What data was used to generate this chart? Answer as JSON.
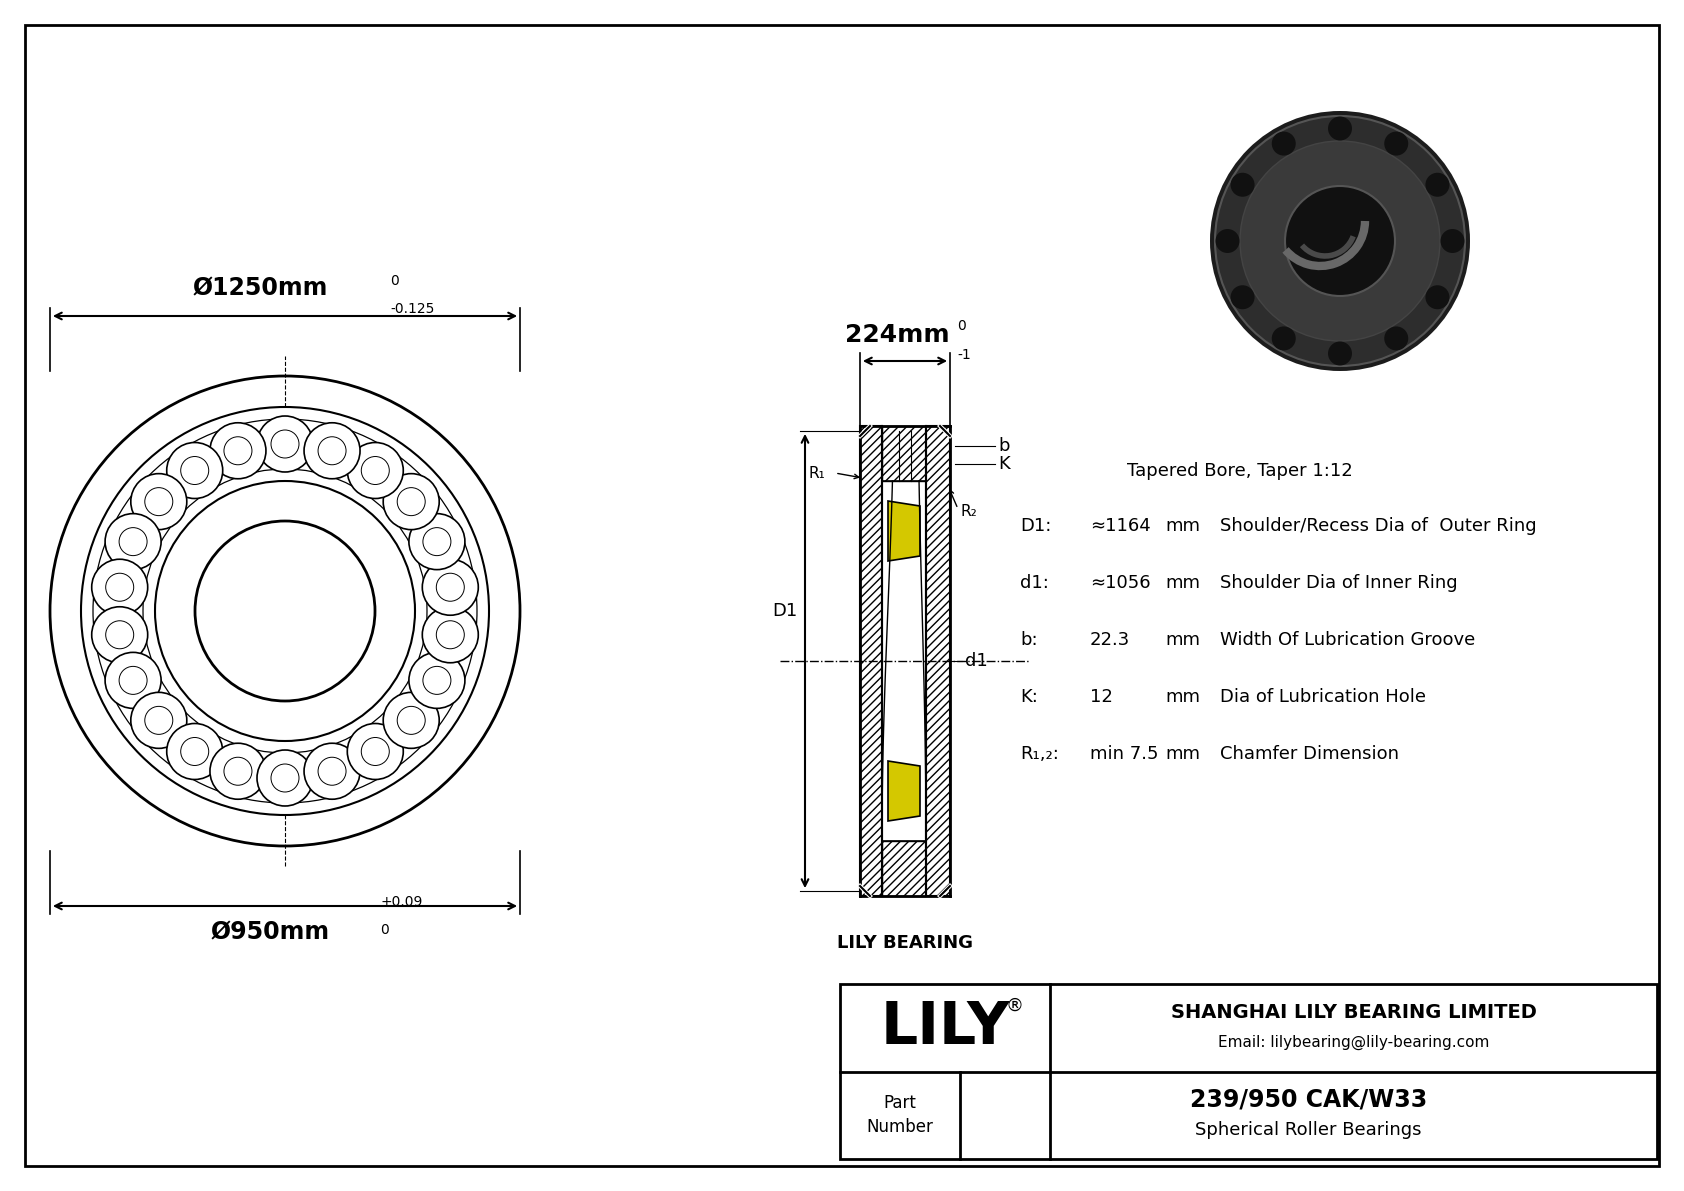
{
  "bg_color": "#ffffff",
  "line_color": "#000000",
  "yellow_color": "#d4c800",
  "outer_diameter_label": "Ø1250mm",
  "outer_tol_upper": "0",
  "outer_tol_lower": "-0.125",
  "inner_diameter_label": "Ø950mm",
  "inner_tol_upper": "+0.09",
  "inner_tol_lower": "0",
  "width_label": "224mm",
  "width_tol_upper": "0",
  "width_tol_lower": "-1",
  "tapered_bore_text": "Tapered Bore, Taper 1:12",
  "spec_D1_label": "D1:",
  "spec_D1_value": "≈1164",
  "spec_D1_unit": "mm",
  "spec_D1_desc": "Shoulder/Recess Dia of  Outer Ring",
  "spec_d1_label": "d1:",
  "spec_d1_value": "≈1056",
  "spec_d1_unit": "mm",
  "spec_d1_desc": "Shoulder Dia of Inner Ring",
  "spec_b_label": "b:",
  "spec_b_value": "22.3",
  "spec_b_unit": "mm",
  "spec_b_desc": "Width Of Lubrication Groove",
  "spec_K_label": "K:",
  "spec_K_value": "12",
  "spec_K_unit": "mm",
  "spec_K_desc": "Dia of Lubrication Hole",
  "spec_R_label": "R₁,₂:",
  "spec_R_value": "min 7.5",
  "spec_R_unit": "mm",
  "spec_R_desc": "Chamfer Dimension",
  "company_name": "SHANGHAI LILY BEARING LIMITED",
  "company_email": "Email: lilybearing@lily-bearing.com",
  "part_label": "Part\nNumber",
  "part_number": "239/950 CAK/W33",
  "part_type": "Spherical Roller Bearings",
  "lily_text": "LILY",
  "lily_registered": "®",
  "cross_section_label": "LILY BEARING",
  "dim_D1_label": "D1",
  "dim_d1_label": "d1",
  "dim_b_label": "b",
  "dim_K_label": "K",
  "dim_R1_label": "R₁",
  "dim_R2_label": "R₂"
}
